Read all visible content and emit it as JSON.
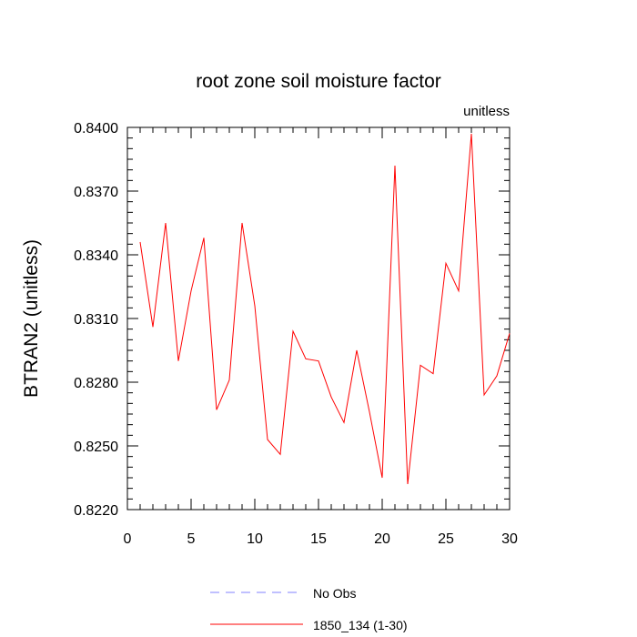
{
  "chart_data": {
    "type": "line",
    "title": "root zone soil moisture factor",
    "units_label": "unitless",
    "xlabel": "",
    "ylabel": "BTRAN2  (unitless)",
    "xlim": [
      0,
      30
    ],
    "ylim": [
      0.822,
      0.84
    ],
    "x_ticks": [
      0,
      5,
      10,
      15,
      20,
      25,
      30
    ],
    "x_tick_labels": [
      "0",
      "5",
      "10",
      "15",
      "20",
      "25",
      "30"
    ],
    "y_ticks": [
      0.822,
      0.825,
      0.828,
      0.831,
      0.834,
      0.837,
      0.84
    ],
    "y_tick_labels": [
      "0.8220",
      "0.8250",
      "0.8280",
      "0.8310",
      "0.8340",
      "0.8370",
      "0.8400"
    ],
    "x_minor_step": 1,
    "y_minor_step": 0.0005,
    "grid": false,
    "legend_position": "bottom",
    "series": [
      {
        "name": "No Obs",
        "color": "#8080ff",
        "style": "dashed",
        "x": [],
        "values": []
      },
      {
        "name": "1850_134 (1-30)",
        "color": "#ff0000",
        "style": "solid",
        "x": [
          1,
          2,
          3,
          4,
          5,
          6,
          7,
          8,
          9,
          10,
          11,
          12,
          13,
          14,
          15,
          16,
          17,
          18,
          19,
          20,
          21,
          22,
          23,
          24,
          25,
          26,
          27,
          28,
          29,
          30
        ],
        "values": [
          0.8346,
          0.8306,
          0.8355,
          0.829,
          0.8323,
          0.8348,
          0.8267,
          0.8281,
          0.8355,
          0.8316,
          0.8253,
          0.8246,
          0.8304,
          0.8291,
          0.829,
          0.8273,
          0.8261,
          0.8295,
          0.8266,
          0.8235,
          0.8382,
          0.8232,
          0.8288,
          0.8284,
          0.8336,
          0.8323,
          0.8397,
          0.8274,
          0.8283,
          0.8303
        ]
      }
    ]
  }
}
